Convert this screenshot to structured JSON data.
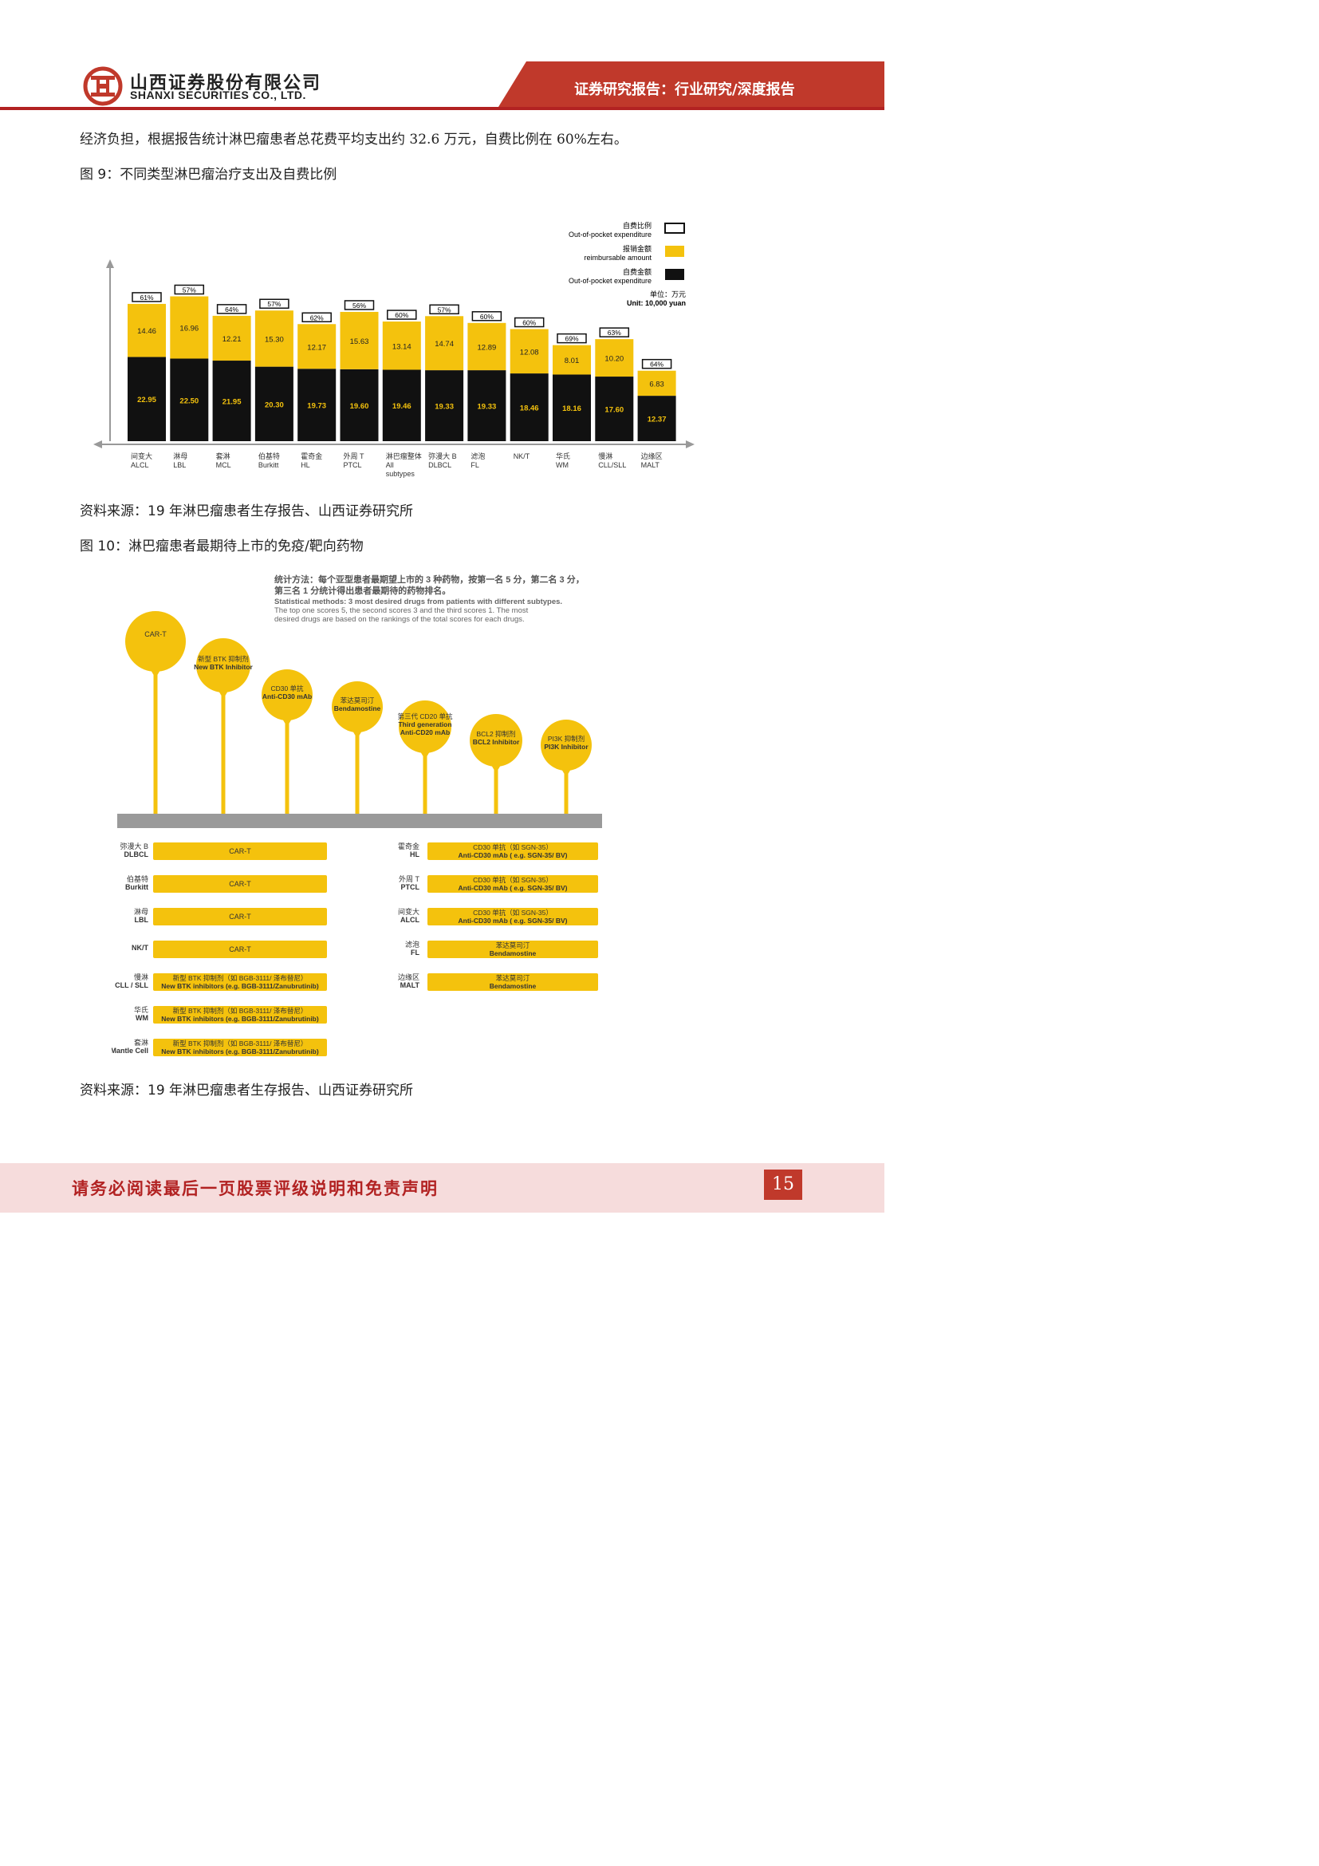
{
  "header": {
    "company_cn": "山西证券股份有限公司",
    "company_en": "SHANXI SECURITIES CO., LTD.",
    "report_type": "证券研究报告：行业研究/深度报告",
    "colors": {
      "brand_red": "#c0392b",
      "line_red": "#b22222"
    }
  },
  "body": {
    "intro_text": "经济负担，根据报告统计淋巴瘤患者总花费平均支出约 32.6 万元，自费比例在 60%左右。",
    "figure9_caption": "图  9：不同类型淋巴瘤治疗支出及自费比例",
    "figure9_source": "资料来源：19 年淋巴瘤患者生存报告、山西证券研究所",
    "figure10_caption": "图  10：淋巴瘤患者最期待上市的免疫/靶向药物",
    "figure10_source": "资料来源：19 年淋巴瘤患者生存报告、山西证券研究所"
  },
  "chart_data": {
    "type": "bar",
    "stacked": true,
    "legend": [
      {
        "cn": "自费比例",
        "en": "Out-of-pocket expenditure",
        "swatch": "outline"
      },
      {
        "cn": "报销金额",
        "en": "reimbursable amount",
        "color": "#f4c20d"
      },
      {
        "cn": "自费金额",
        "en": "Out-of-pocket expenditure",
        "color": "#111111"
      }
    ],
    "unit": {
      "cn": "单位：万元",
      "en": "Unit: 10,000 yuan"
    },
    "categories": [
      {
        "cn": "间变大",
        "en": "ALCL"
      },
      {
        "cn": "淋母",
        "en": "LBL"
      },
      {
        "cn": "套淋",
        "en": "MCL"
      },
      {
        "cn": "伯基特",
        "en": "Burkitt"
      },
      {
        "cn": "霍奇金",
        "en": "HL"
      },
      {
        "cn": "外周 T",
        "en": "PTCL"
      },
      {
        "cn": "淋巴瘤整体",
        "en": "All subtypes"
      },
      {
        "cn": "弥漫大 B",
        "en": "DLBCL"
      },
      {
        "cn": "滤泡",
        "en": "FL"
      },
      {
        "cn": "",
        "en": "NK/T"
      },
      {
        "cn": "华氏",
        "en": "WM"
      },
      {
        "cn": "慢淋",
        "en": "CLL/SLL"
      },
      {
        "cn": "边缘区",
        "en": "MALT"
      }
    ],
    "series": [
      {
        "name": "自费金额",
        "values": [
          22.95,
          22.5,
          21.95,
          20.3,
          19.73,
          19.6,
          19.46,
          19.33,
          19.33,
          18.46,
          18.16,
          17.6,
          12.37
        ]
      },
      {
        "name": "报销金额",
        "values": [
          14.46,
          16.96,
          12.21,
          15.3,
          12.17,
          15.63,
          13.14,
          14.74,
          12.89,
          12.08,
          8.01,
          10.2,
          6.83
        ]
      }
    ],
    "ratio_labels": [
      "61%",
      "57%",
      "64%",
      "57%",
      "62%",
      "56%",
      "60%",
      "57%",
      "60%",
      "60%",
      "69%",
      "63%",
      "64%"
    ],
    "ylim": [
      0,
      45
    ]
  },
  "figure10": {
    "method_cn": "统计方法：每个亚型患者最期望上市的 3 种药物，按第一名 5 分，第二名 3 分，第三名 1 分统计得出患者最期待的药物排名。",
    "method_en": "Statistical methods: 3 most desired drugs from patients with different subtypes. The top one scores 5, the second scores 3 and the third scores 1. The most desired drugs are based on the rankings of the total scores for each drugs.",
    "balloons": [
      {
        "cn": "CAR-T",
        "en": ""
      },
      {
        "cn": "新型 BTK 抑制剂",
        "en": "New BTK Inhibitor"
      },
      {
        "cn": "CD30 单抗",
        "en": "Anti-CD30 mAb"
      },
      {
        "cn": "苯达莫司汀",
        "en": "Bendamostine"
      },
      {
        "cn": "第三代 CD20 单抗",
        "en": "Third generation Anti-CD20 mAb"
      },
      {
        "cn": "BCL2 抑制剂",
        "en": "BCL2 Inhibitor"
      },
      {
        "cn": "PI3K 抑制剂",
        "en": "PI3K Inhibitor"
      }
    ],
    "left_rows": [
      {
        "cn": "弥漫大 B",
        "en": "DLBCL",
        "drug1": "CAR-T",
        "drug2": ""
      },
      {
        "cn": "伯基特",
        "en": "Burkitt",
        "drug1": "CAR-T",
        "drug2": ""
      },
      {
        "cn": "淋母",
        "en": "LBL",
        "drug1": "CAR-T",
        "drug2": ""
      },
      {
        "cn": "",
        "en": "NK/T",
        "drug1": "CAR-T",
        "drug2": ""
      },
      {
        "cn": "慢淋",
        "en": "CLL / SLL",
        "drug1": "新型 BTK 抑制剂（如 BGB-3111/ 泽布替尼）",
        "drug2": "New BTK inhibitors (e.g. BGB-3111/Zanubrutinib)"
      },
      {
        "cn": "华氏",
        "en": "WM",
        "drug1": "新型 BTK 抑制剂（如 BGB-3111/ 泽布替尼）",
        "drug2": "New BTK inhibitors (e.g. BGB-3111/Zanubrutinib)"
      },
      {
        "cn": "套淋",
        "en": "Mantle Cell",
        "drug1": "新型 BTK 抑制剂（如 BGB-3111/ 泽布替尼）",
        "drug2": "New BTK inhibitors (e.g. BGB-3111/Zanubrutinib)"
      }
    ],
    "right_rows": [
      {
        "cn": "霍奇金",
        "en": "HL",
        "drug1": "CD30 单抗（如 SGN-35）",
        "drug2": "Anti-CD30 mAb ( e.g. SGN-35/ BV)"
      },
      {
        "cn": "外周 T",
        "en": "PTCL",
        "drug1": "CD30 单抗（如 SGN-35）",
        "drug2": "Anti-CD30 mAb ( e.g. SGN-35/ BV)"
      },
      {
        "cn": "间变大",
        "en": "ALCL",
        "drug1": "CD30 单抗（如 SGN-35）",
        "drug2": "Anti-CD30 mAb ( e.g. SGN-35/ BV)"
      },
      {
        "cn": "滤泡",
        "en": "FL",
        "drug1": "苯达莫司汀",
        "drug2": "Bendamostine"
      },
      {
        "cn": "边缘区",
        "en": "MALT",
        "drug1": "苯达莫司汀",
        "drug2": "Bendamostine"
      }
    ],
    "colors": {
      "yellow": "#f4c20d",
      "bar_grey": "#9a9a9a"
    }
  },
  "footer": {
    "disclaimer": "请务必阅读最后一页股票评级说明和免责声明",
    "page_number": "15"
  }
}
